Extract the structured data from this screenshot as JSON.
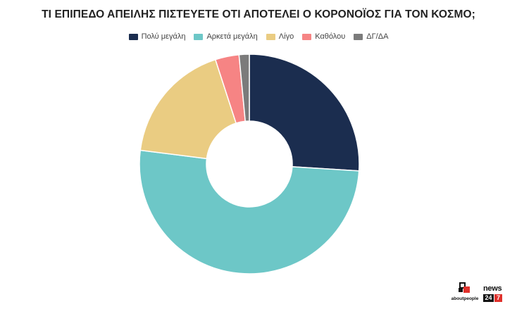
{
  "chart_data": {
    "type": "pie",
    "title": "ΤΙ ΕΠΙΠΕΔΟ ΑΠΕΙΛΗΣ ΠΙΣΤΕΥΕΤΕ ΟΤΙ ΑΠΟΤΕΛΕΙ Ο ΚΟΡΟΝΟΪΟΣ ΓΙΑ ΤΟΝ ΚΟΣΜΟ;",
    "donut": true,
    "legend_position": "top",
    "categories": [
      "Πολύ μεγάλη",
      "Αρκετά μεγάλη",
      "Λίγο",
      "Καθόλου",
      "ΔΓ/ΔΑ"
    ],
    "values": [
      26,
      51,
      18,
      3.5,
      1.5
    ],
    "colors": [
      "#1b2d4f",
      "#6dc7c7",
      "#eacc82",
      "#f68484",
      "#7b7b7b"
    ]
  },
  "logos": {
    "about": "aboutpeople",
    "news_word": "news",
    "news_num_1": "24",
    "news_num_2": "7"
  }
}
